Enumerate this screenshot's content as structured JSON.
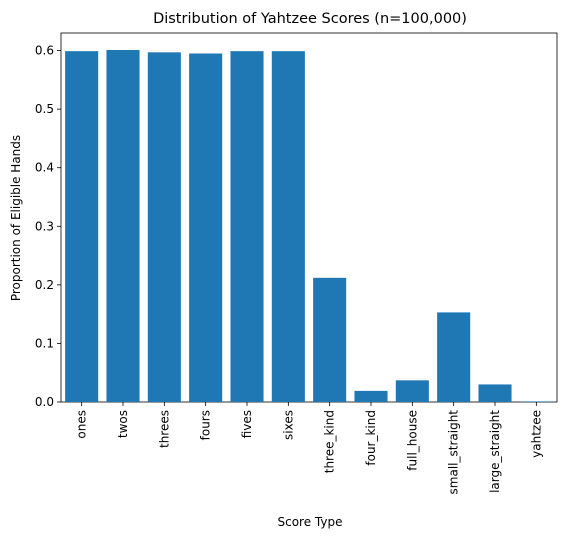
{
  "chart_data": {
    "type": "bar",
    "title": "Distribution of Yahtzee Scores (n=100,000)",
    "xlabel": "Score Type",
    "ylabel": "Proportion of Eligible Hands",
    "categories": [
      "ones",
      "twos",
      "threes",
      "fours",
      "fives",
      "sixes",
      "three_kind",
      "four_kind",
      "full_house",
      "small_straight",
      "large_straight",
      "yahtzee"
    ],
    "values": [
      0.599,
      0.601,
      0.597,
      0.595,
      0.599,
      0.599,
      0.212,
      0.019,
      0.037,
      0.153,
      0.03,
      0.001
    ],
    "ylim": [
      0,
      0.63
    ],
    "yticks": [
      0.0,
      0.1,
      0.2,
      0.3,
      0.4,
      0.5,
      0.6
    ],
    "ytick_labels": [
      "0.0",
      "0.1",
      "0.2",
      "0.3",
      "0.4",
      "0.5",
      "0.6"
    ],
    "bar_color": "#1f77b4",
    "grid": false,
    "legend": "none"
  }
}
